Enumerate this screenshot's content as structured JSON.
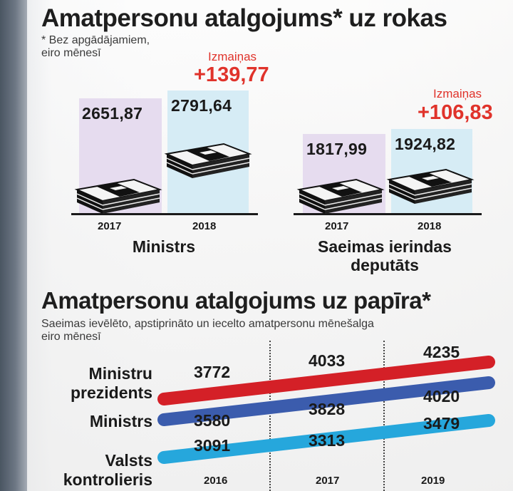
{
  "chart_data": [
    {
      "type": "bar",
      "title": "Amatpersonu atalgojums* uz rokas",
      "footnote": [
        "* Bez apgādājamiem,",
        "eiro mēnesī"
      ],
      "groups": [
        {
          "name": "Ministrs",
          "years": [
            "2017",
            "2018"
          ],
          "values": [
            2651.87,
            2791.64
          ],
          "value_labels": [
            "2651,87",
            "2791,64"
          ],
          "change_label": "Izmaiņas",
          "change": "+139,77"
        },
        {
          "name": "Saeimas ierindas deputāts",
          "name_lines": [
            "Saeimas ierindas",
            "deputāts"
          ],
          "years": [
            "2017",
            "2018"
          ],
          "values": [
            1817.99,
            1924.82
          ],
          "value_labels": [
            "1817,99",
            "1924,82"
          ],
          "change_label": "Izmaiņas",
          "change": "+106,83"
        }
      ],
      "colors": {
        "2017": "#e6dcef",
        "2018": "#d6ecf5",
        "change": "#e0332b"
      }
    },
    {
      "type": "line",
      "title": "Amatpersonu atalgojums uz papīra*",
      "subtitle": [
        "Saeimas ievēlēto, apstiprināto un iecelto amatpersonu mēnešalga",
        "eiro mēnesī"
      ],
      "x": [
        "2016",
        "2017",
        "2019"
      ],
      "series": [
        {
          "name": "Ministru prezidents",
          "name_lines": [
            "Ministru",
            "prezidents"
          ],
          "values": [
            3772,
            4033,
            4235
          ],
          "color": "#d42027"
        },
        {
          "name": "Ministrs",
          "name_lines": [
            "Ministrs"
          ],
          "values": [
            3580,
            3828,
            4020
          ],
          "color": "#3b5cad"
        },
        {
          "name": "Valsts kontrolieris",
          "name_lines": [
            "Valsts",
            "kontrolieris"
          ],
          "values": [
            3091,
            3313,
            3479
          ],
          "color": "#26a7dc"
        }
      ]
    }
  ]
}
